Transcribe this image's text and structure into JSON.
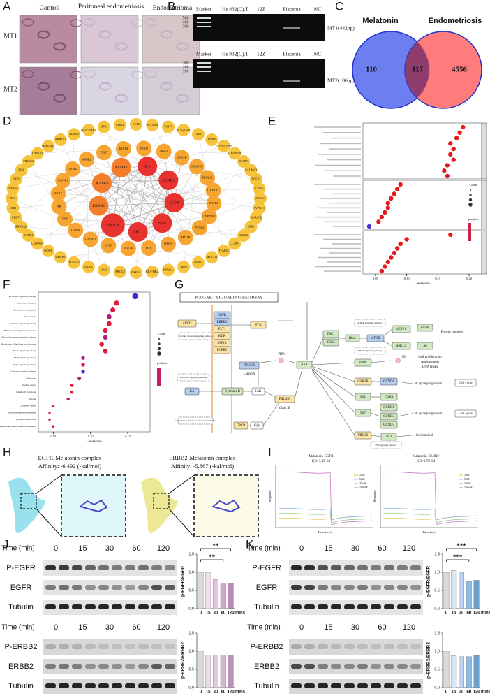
{
  "panel_labels": [
    "A",
    "B",
    "C",
    "D",
    "E",
    "F",
    "G",
    "H",
    "I",
    "J",
    "K"
  ],
  "panel_a": {
    "columns": [
      "Control",
      "Peritoneal endometriosis",
      "Endometrioma"
    ],
    "rows": [
      "MT1",
      "MT2"
    ]
  },
  "panel_b": {
    "lanes": [
      "Marker",
      "Hs 832(C).T",
      "12Z",
      "Placenta",
      "NC"
    ],
    "gels": [
      {
        "markers": [
          "500",
          "400",
          "300"
        ],
        "band": "MT1(442bp)"
      },
      {
        "markers": [
          "300",
          "200",
          "100"
        ],
        "band": "MT2(106bp)"
      }
    ]
  },
  "panel_c": {
    "sets": [
      "Melatonin",
      "Endometriosis"
    ],
    "counts": [
      110,
      117,
      4556
    ]
  },
  "panel_d": {
    "inner": [
      "IL6",
      "CCND1",
      "EGFR",
      "ESR1",
      "AKT1",
      "PIK3CA",
      "ERBB2",
      "MAPK8",
      "NCOR2"
    ],
    "middle": [
      "MED1",
      "NOS3",
      "GSK3B",
      "HDAC3",
      "HDAC2",
      "CYP1A1",
      "FGFR2",
      "CYP19A1",
      "PTGS2",
      "MTOR",
      "MMP9",
      "PGR",
      "KAT2B",
      "HCRT",
      "CALM1",
      "GHSR",
      "TNF",
      "AR",
      "ESR2",
      "CCNE1",
      "NOS2",
      "MMP2",
      "TERT",
      "IGF1R"
    ],
    "outer": [
      "FLT4",
      "SLC6A4",
      "WNT4",
      "PLA2G2A",
      "LEF1",
      "RYR2",
      "ENSG00000196689",
      "CYP2C19",
      "MAPT",
      "CALML3",
      "TGFB1",
      "CDK9",
      "ABCC4",
      "AVPR1A",
      "AKR1C2",
      "KDR",
      "ROCK2",
      "CCND3",
      "TFAP2C",
      "MT-CO2",
      "GHRL",
      "MPO",
      "KIF20A",
      "HLA-DRA",
      "GSK3A",
      "ABCG2",
      "SOX9",
      "FAAH",
      "SLC6A3",
      "DDAH1",
      "NQO1",
      "CHRNB4",
      "SGMS1",
      "PRKAQ1",
      "CD274",
      "VDR",
      "TTK",
      "TYMS",
      "DRD2",
      "AHR",
      "PIK3CG",
      "CYP1B1",
      "HSD11B1",
      "AKR1C1",
      "ADRB2",
      "HLA-DRB1",
      "IFNG",
      "CDK4"
    ]
  },
  "panel_e": {
    "x_label": "GeneRatio",
    "xlim": [
      0.03,
      0.22
    ],
    "xticks": [
      {
        "value": 0.05,
        "label": "0.05"
      },
      {
        "value": 0.1,
        "label": "0.10"
      },
      {
        "value": 0.15,
        "label": "0.15"
      },
      {
        "value": 0.2,
        "label": "0.20"
      }
    ],
    "legend_titles": [
      "Count",
      "p.adjust"
    ],
    "groups": [
      [
        0.19,
        0.185,
        0.18,
        0.17,
        0.175,
        0.17,
        0.175,
        0.165,
        0.16,
        0.165
      ],
      [
        0.09,
        0.085,
        0.08,
        0.075,
        0.07,
        0.07,
        0.065,
        0.06,
        0.055,
        0.04
      ],
      [
        0.17,
        0.1,
        0.09,
        0.085,
        0.08,
        0.075,
        0.07,
        0.065,
        0.06
      ]
    ]
  },
  "panel_f": {
    "x_label": "GeneRatio",
    "xlim": [
      0.03,
      0.18
    ],
    "xticks": [
      {
        "value": 0.05,
        "label": "0.05"
      },
      {
        "value": 0.1,
        "label": "0.10"
      },
      {
        "value": 0.15,
        "label": "0.15"
      }
    ],
    "legend_titles": [
      "Count",
      "p.adjust"
    ],
    "pathways": [
      "PI3K-Akt signaling pathway",
      "Endocrine resistance",
      "Chemical carcinogenesis",
      "Breast cancer",
      "Prolactin signaling pathway",
      "Human cytomegalovirus infection",
      "Thyroid hormone signaling pathway",
      "Regulation of lipolysis in adipocytes",
      "FoxO signaling pathway",
      "cAMP signaling pathway",
      "Rap1 signaling pathway",
      "Calcium signaling pathway",
      "Melanoma",
      "Prostate cancer",
      "Renal cell carcinoma",
      "Glioma",
      "Colorectal cancer",
      "Steroid hormone biosynthesis",
      "Pyruvate metabolism",
      "EGFR tyrosine kinase inhibitor resistance"
    ],
    "gene_ratio": [
      0.16,
      0.135,
      0.13,
      0.125,
      0.125,
      0.12,
      0.12,
      0.115,
      0.12,
      0.09,
      0.09,
      0.09,
      0.085,
      0.075,
      0.075,
      0.07,
      0.05,
      0.045,
      0.045,
      0.05
    ]
  },
  "panel_g": {
    "title": "PI3K-AKT SIGNALING PATHWAY",
    "nodes": [
      "AREG",
      "Toll-like receptor signaling pathway",
      "EGFR",
      "ERBB2",
      "FLT1",
      "KDR",
      "IGF1R",
      "FGFR2",
      "SYK",
      "PIK3CA",
      "Class IA",
      "PIP3",
      "AKT",
      "Jak-STAT signaling pathway",
      "IL6",
      "Cytokine R",
      "JAK",
      "PIK3CG",
      "Class IB",
      "Chemokines, Hormones, Neurotransmitters",
      "GPCR",
      "Gβγ",
      "TSC1",
      "TSC2",
      "Rheb",
      "mTOR",
      "mTOR signaling pathway",
      "4EBP1",
      "eIF4E",
      "S6K1/2",
      "S6",
      "Protein synthesis",
      "VEGF signaling pathway",
      "eNOS",
      "NO",
      "Cell proliferation",
      "Angiogenesis",
      "DNA repair",
      "GSK3B",
      "CCND1",
      "Cell cycle progression",
      "Cell cycle",
      "P21",
      "CDK4",
      "P27",
      "CCND1",
      "CCND2",
      "CCND3",
      "Cell cycle progression",
      "Cell cycle",
      "MDM2",
      "P53",
      "Cell survival",
      "P53 signaling pathway"
    ]
  },
  "panel_h": {
    "complexes": [
      {
        "name": "EGFR-Melatonin complex",
        "affinity": "Affinity: -6.492 (-kal/mol)"
      },
      {
        "name": "ERBB2-Melatonin complex",
        "affinity": "Affinity: -5.867 (-kal/mol)"
      }
    ]
  },
  "panel_i": {
    "plots": [
      {
        "title": "Melatonin-EGFR",
        "kd": "KD=3.8E-04"
      },
      {
        "title": "Melatonin-ERBB2",
        "kd": "KD=3.7E-04"
      }
    ],
    "y_label": "Response",
    "x_label": "Time (sec)",
    "concentrations": [
      "1uM",
      "5uM",
      "25uM",
      "100uM"
    ]
  },
  "panel_j": {
    "blots": [
      {
        "time_label": "Time (min)",
        "time_points": [
          "0",
          "15",
          "30",
          "60",
          "120"
        ],
        "proteins": [
          "P-EGFR",
          "EGFR",
          "Tubulin"
        ],
        "chart": {
          "y_label": "p-EGFR/EGFR",
          "categories": [
            "0",
            "15",
            "30",
            "60",
            "120"
          ],
          "x_unit": "mins",
          "values": [
            1.0,
            1.0,
            0.8,
            0.7,
            0.7
          ],
          "ylim": [
            0,
            1.5
          ],
          "yticks": [
            {
              "value": 0,
              "label": "0.0"
            },
            {
              "value": 0.5,
              "label": "0.5"
            },
            {
              "value": 1,
              "label": "1.0"
            },
            {
              "value": 1.5,
              "label": "1.5"
            }
          ],
          "significance": [
            "**",
            "**"
          ]
        }
      },
      {
        "time_label": "Time (min)",
        "time_points": [
          "0",
          "15",
          "30",
          "60",
          "120"
        ],
        "proteins": [
          "P-ERBB2",
          "ERBB2",
          "Tubulin"
        ],
        "chart": {
          "y_label": "p-ERBB2/ERBB2",
          "categories": [
            "0",
            "15",
            "30",
            "60",
            "120"
          ],
          "x_unit": "mins",
          "values": [
            1.0,
            0.9,
            0.9,
            0.9,
            0.9
          ],
          "ylim": [
            0,
            1.5
          ],
          "yticks": [
            {
              "value": 0,
              "label": "0.0"
            },
            {
              "value": 0.5,
              "label": "0.5"
            },
            {
              "value": 1,
              "label": "1.0"
            },
            {
              "value": 1.5,
              "label": "1.5"
            }
          ],
          "significance": []
        }
      }
    ]
  },
  "panel_k": {
    "blots": [
      {
        "time_label": "Time (min)",
        "time_points": [
          "0",
          "15",
          "30",
          "60",
          "120"
        ],
        "proteins": [
          "P-EGFR",
          "EGFR",
          "Tubulin"
        ],
        "chart": {
          "y_label": "p-EGFR/EGFR",
          "categories": [
            "0",
            "15",
            "30",
            "60",
            "120"
          ],
          "x_unit": "mins",
          "values": [
            1.0,
            1.05,
            1.0,
            0.75,
            0.78
          ],
          "ylim": [
            0,
            1.5
          ],
          "yticks": [
            {
              "value": 0,
              "label": "0.0"
            },
            {
              "value": 0.5,
              "label": "0.5"
            },
            {
              "value": 1,
              "label": "1.0"
            },
            {
              "value": 1.5,
              "label": "1.5"
            }
          ],
          "significance": [
            "***",
            "***"
          ]
        }
      },
      {
        "time_label": "Time (min)",
        "time_points": [
          "0",
          "15",
          "30",
          "60",
          "120"
        ],
        "proteins": [
          "P-ERBB2",
          "ERBB2",
          "Tubulin"
        ],
        "chart": {
          "y_label": "p-ERBB2/ERBB2",
          "categories": [
            "0",
            "15",
            "30",
            "60",
            "120"
          ],
          "x_unit": "mins",
          "values": [
            1.0,
            0.88,
            0.85,
            0.85,
            0.88
          ],
          "ylim": [
            0,
            1.5
          ],
          "yticks": [
            {
              "value": 0,
              "label": "0.0"
            },
            {
              "value": 0.5,
              "label": "0.5"
            },
            {
              "value": 1,
              "label": "1.0"
            },
            {
              "value": 1.5,
              "label": "1.5"
            }
          ],
          "significance": []
        }
      }
    ]
  }
}
